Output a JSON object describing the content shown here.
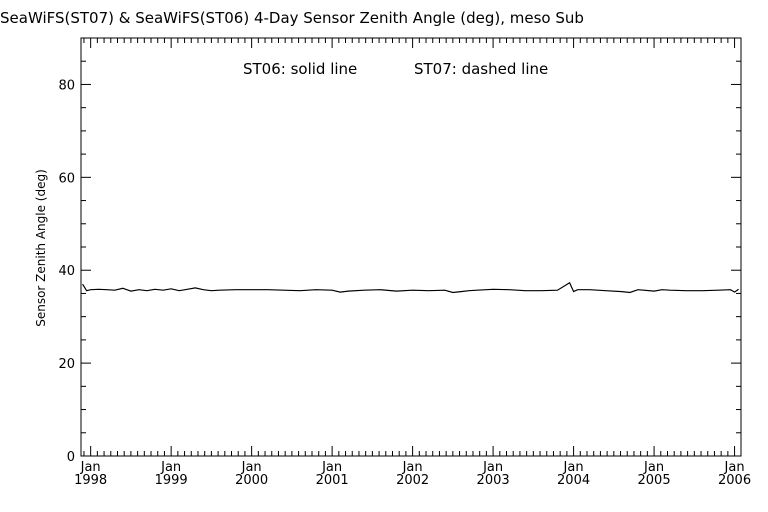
{
  "chart_data": {
    "type": "line",
    "title": "SeaWiFS(ST07) & SeaWiFS(ST06) 4-Day Sensor Zenith Angle (deg), meso Sub",
    "annotation_solid": "ST06: solid line",
    "annotation_dashed": "ST07: dashed line",
    "xlabel": "",
    "ylabel": "Sensor Zenith Angle (deg)",
    "ylim": [
      0,
      90
    ],
    "xlim": [
      1997.88,
      2006.08
    ],
    "yticks": [
      "0",
      "20",
      "40",
      "60",
      "80"
    ],
    "xticks": [
      {
        "month": "Jan",
        "year": "1998",
        "pos": 1998.0
      },
      {
        "month": "Jan",
        "year": "1999",
        "pos": 1999.0
      },
      {
        "month": "Jan",
        "year": "2000",
        "pos": 2000.0
      },
      {
        "month": "Jan",
        "year": "2001",
        "pos": 2001.0
      },
      {
        "month": "Jan",
        "year": "2002",
        "pos": 2002.0
      },
      {
        "month": "Jan",
        "year": "2003",
        "pos": 2003.0
      },
      {
        "month": "Jan",
        "year": "2004",
        "pos": 2004.0
      },
      {
        "month": "Jan",
        "year": "2005",
        "pos": 2005.0
      },
      {
        "month": "Jan",
        "year": "2006",
        "pos": 2006.0
      }
    ],
    "series": [
      {
        "name": "ST06",
        "style": "solid",
        "x": [
          1997.9,
          1997.95,
          1998.0,
          1998.1,
          1998.2,
          1998.3,
          1998.4,
          1998.5,
          1998.6,
          1998.7,
          1998.8,
          1998.9,
          1999.0,
          1999.1,
          1999.2,
          1999.3,
          1999.4,
          1999.5,
          1999.6,
          1999.8,
          2000.0,
          2000.2,
          2000.4,
          2000.6,
          2000.8,
          2001.0,
          2001.1,
          2001.2,
          2001.4,
          2001.6,
          2001.8,
          2002.0,
          2002.2,
          2002.4,
          2002.5,
          2002.6,
          2002.7,
          2002.8,
          2003.0,
          2003.2,
          2003.4,
          2003.6,
          2003.8,
          2003.95,
          2004.0,
          2004.05,
          2004.2,
          2004.4,
          2004.6,
          2004.7,
          2004.8,
          2005.0,
          2005.1,
          2005.2,
          2005.4,
          2005.6,
          2005.8,
          2005.95,
          2006.0,
          2006.05
        ],
        "values": [
          37.0,
          35.6,
          35.8,
          35.9,
          35.8,
          35.7,
          36.1,
          35.5,
          35.8,
          35.6,
          35.9,
          35.7,
          36.0,
          35.6,
          35.9,
          36.2,
          35.8,
          35.6,
          35.7,
          35.8,
          35.8,
          35.8,
          35.7,
          35.6,
          35.8,
          35.7,
          35.3,
          35.5,
          35.7,
          35.8,
          35.5,
          35.7,
          35.6,
          35.7,
          35.2,
          35.4,
          35.6,
          35.7,
          35.9,
          35.8,
          35.6,
          35.6,
          35.7,
          37.3,
          35.4,
          35.8,
          35.8,
          35.6,
          35.4,
          35.2,
          35.8,
          35.5,
          35.8,
          35.7,
          35.6,
          35.6,
          35.7,
          35.8,
          35.3,
          35.9
        ]
      }
    ]
  }
}
